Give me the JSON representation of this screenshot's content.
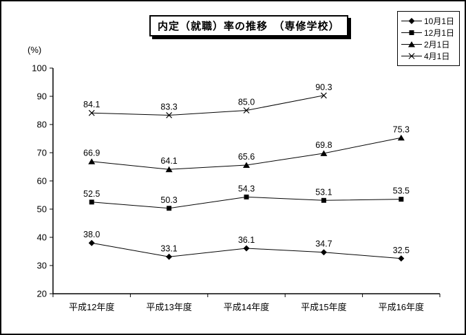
{
  "title": "内定（就職）率の推移　（専修学校）",
  "y_unit_label": "(%)",
  "colors": {
    "foreground": "#000000",
    "background": "#ffffff"
  },
  "chart_data": {
    "type": "line",
    "title": "内定（就職）率の推移（専修学校）",
    "ylabel": "(%)",
    "categories": [
      "平成12年度",
      "平成13年度",
      "平成14年度",
      "平成15年度",
      "平成16年度"
    ],
    "series": [
      {
        "name": "10月1日",
        "marker": "diamond",
        "values": [
          38.0,
          33.1,
          36.1,
          34.7,
          32.5
        ]
      },
      {
        "name": "12月1日",
        "marker": "square",
        "values": [
          52.5,
          50.3,
          54.3,
          53.1,
          53.5
        ]
      },
      {
        "name": "2月1日",
        "marker": "triangle",
        "values": [
          66.9,
          64.1,
          65.6,
          69.8,
          75.3
        ]
      },
      {
        "name": "4月1日",
        "marker": "x",
        "values": [
          84.1,
          83.3,
          85.0,
          90.3,
          null
        ]
      }
    ],
    "ylim": [
      20,
      100
    ],
    "ytick_step": 10,
    "point_labels": true,
    "grid": false,
    "legend_position": "top-right",
    "line_color": "#000000"
  }
}
